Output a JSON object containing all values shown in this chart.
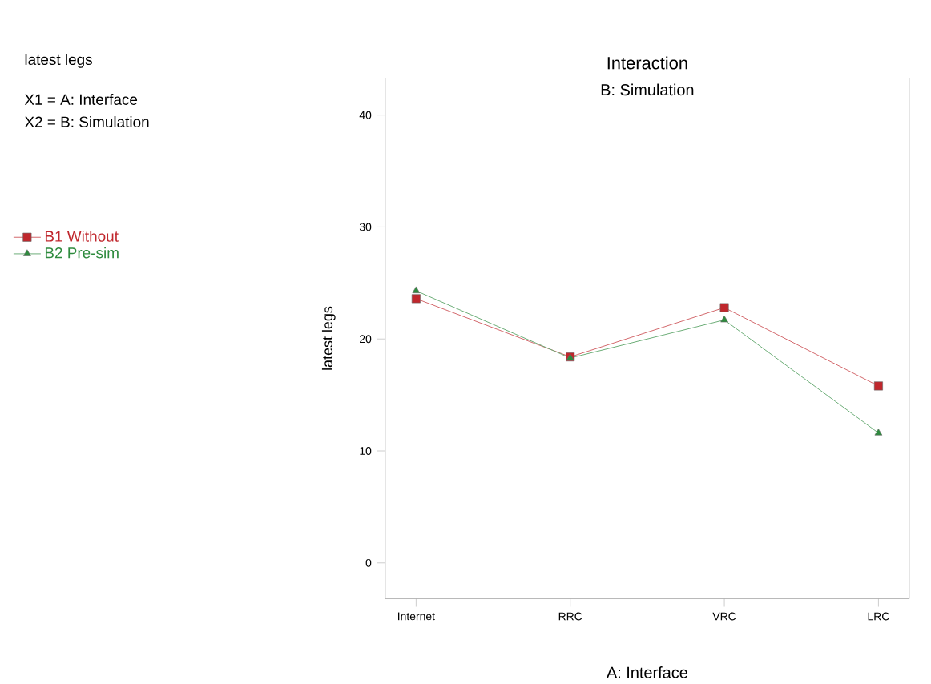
{
  "chart_data": {
    "type": "line",
    "title": "Interaction",
    "subtitle": "B: Simulation",
    "xlabel": "A: Interface",
    "ylabel": "latest legs",
    "annotations": [
      "latest legs",
      "X1 = A: Interface",
      "X2 = B: Simulation"
    ],
    "categories": [
      "Internet",
      "RRC",
      "VRC",
      "LRC"
    ],
    "series": [
      {
        "name": "B1 Without",
        "color": "#c0272d",
        "marker": "square",
        "values": [
          23.6,
          18.4,
          22.8,
          15.8
        ]
      },
      {
        "name": "B2 Pre-sim",
        "color": "#2e8b3e",
        "marker": "triangle",
        "values": [
          24.3,
          18.3,
          21.7,
          11.6
        ]
      }
    ],
    "ylim": [
      -3.2,
      43.3
    ],
    "yticks": [
      0,
      10,
      20,
      30,
      40
    ],
    "legend": "left",
    "grid": false
  }
}
